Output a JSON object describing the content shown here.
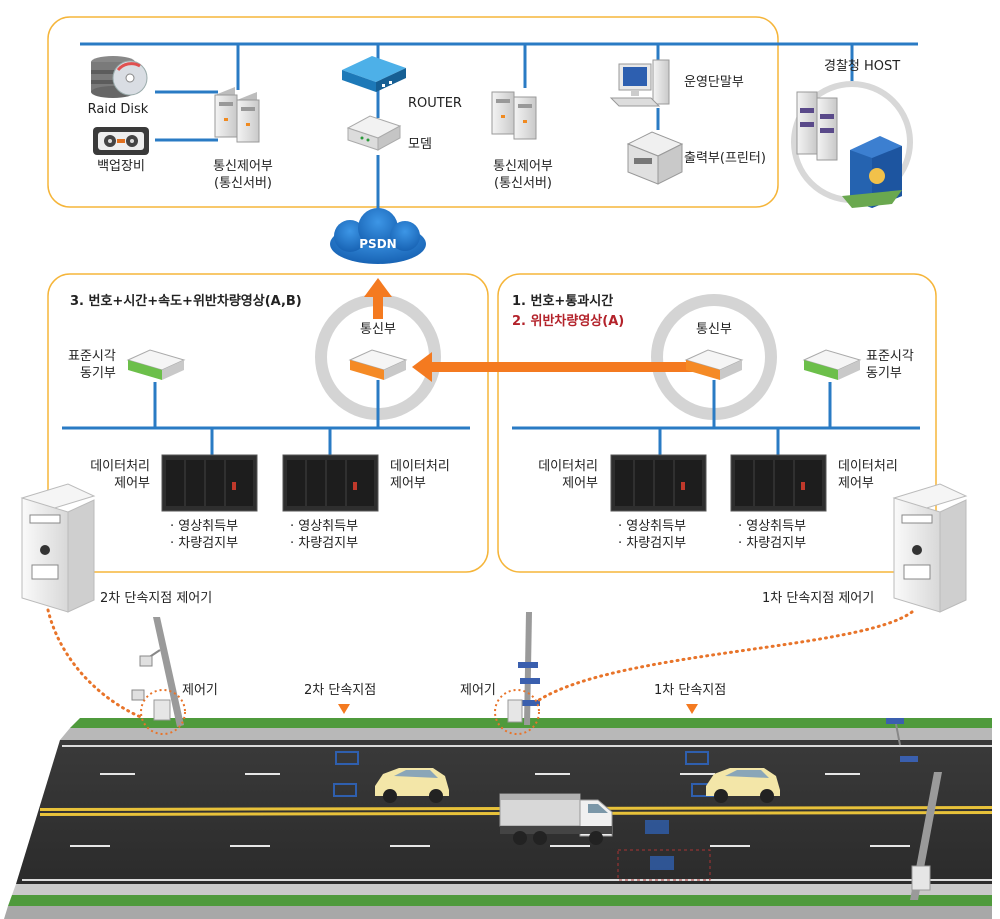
{
  "top": {
    "raid_disk": "Raid Disk",
    "backup": "백업장비",
    "comm_server_left": [
      "통신제어부",
      "(통신서버)"
    ],
    "router": "ROUTER",
    "modem": "모뎀",
    "comm_server_right": [
      "통신제어부",
      "(통신서버)"
    ],
    "operator_terminal": "운영단말부",
    "printer": "출력부(프린터)",
    "police_host": "경찰청 HOST"
  },
  "network": {
    "psdn": "PSDN"
  },
  "panel_2nd": {
    "title": "3. 번호+시간+속도+위반차량영상(A,B)",
    "comm": "통신부",
    "time_sync": [
      "표준시각",
      "동기부"
    ],
    "data_left": [
      "데이터처리",
      "제어부"
    ],
    "data_right": [
      "데이터처리",
      "제어부"
    ],
    "sub_left": [
      "· 영상취득부",
      "· 차량검지부"
    ],
    "sub_right": [
      "· 영상취득부",
      "· 차량검지부"
    ]
  },
  "panel_1st": {
    "line1": "1. 번호+통과시간",
    "line2": "2. 위반차량영상(A)",
    "comm": "통신부",
    "time_sync": [
      "표준시각",
      "동기부"
    ],
    "data_left": [
      "데이터처리",
      "제어부"
    ],
    "data_right": [
      "데이터처리",
      "제어부"
    ],
    "sub_left": [
      "· 영상취득부",
      "· 차량검지부"
    ],
    "sub_right": [
      "· 영상취득부",
      "· 차량검지부"
    ]
  },
  "road": {
    "controller_2nd": "2차 단속지점 제어기",
    "controller_1st": "1차 단속지점 제어기",
    "controller_left": "제어기",
    "controller_mid": "제어기",
    "point_2nd": "2차 단속지점",
    "point_1st": "1차 단속지점"
  },
  "colors": {
    "network_line": "#2a7bc4",
    "panel_border": "#f5b53a",
    "arrow": "#f47a20",
    "violation_text": "#b3222a",
    "cloud": "#1f6fc0",
    "road": "#333333",
    "grass": "#4f9a3c"
  }
}
